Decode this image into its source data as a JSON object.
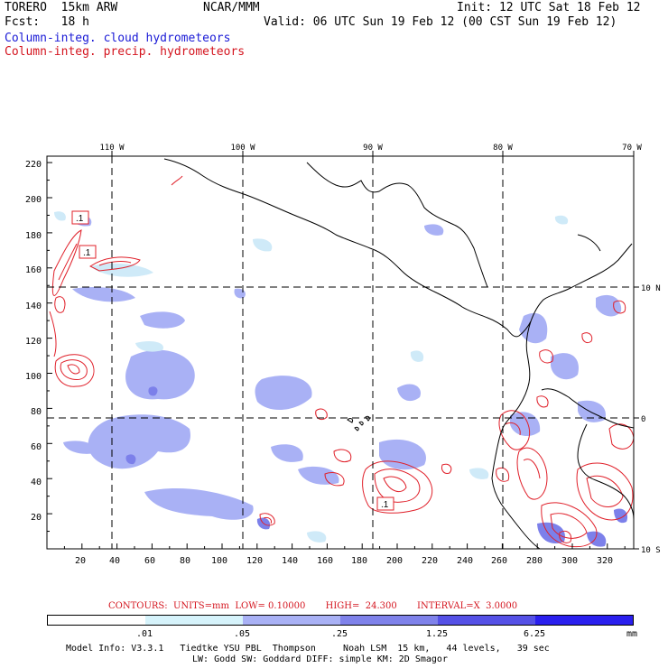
{
  "header": {
    "model": "TORERO  15km ARW",
    "org": "NCAR/MMM",
    "init": "Init: 12 UTC Sat 18 Feb 12",
    "fcst": "Fcst:   18 h",
    "valid": "Valid: 06 UTC Sun 19 Feb 12 (00 CST Sun 19 Feb 12)",
    "field1": "Column-integ. cloud hydrometeors",
    "field2": "Column-integ. precip. hydrometeors"
  },
  "map": {
    "lon_labels": [
      "110 W",
      "100 W",
      "90 W",
      "80 W",
      "70 W"
    ],
    "lat_labels": [
      "10 N",
      "0",
      "10 S"
    ],
    "y_ticks": [
      "220",
      "200",
      "180",
      "160",
      "140",
      "120",
      "100",
      "80",
      "60",
      "40",
      "20"
    ],
    "x_ticks": [
      "20",
      "40",
      "60",
      "80",
      "100",
      "120",
      "140",
      "160",
      "180",
      "200",
      "220",
      "240",
      "260",
      "280",
      "300",
      "320"
    ],
    "contour_labels": [
      ".1",
      ".1",
      ".1"
    ],
    "colors": {
      "cloud_light": "#cfeaf8",
      "cloud_mid": "#a9b1f5",
      "cloud_dark": "#7c80ea",
      "precip": "#e0202a",
      "coast": "#000000"
    }
  },
  "contours": {
    "title": "CONTOURS:  UNITS=mm  LOW= 0.10000       HIGH=  24.300       INTERVAL=X  3.0000"
  },
  "colorbar": {
    "labels": [
      ".01",
      ".05",
      ".25",
      "1.25",
      "6.25"
    ],
    "unit": "mm",
    "colors": [
      "#ffffff",
      "#d6f3fb",
      "#a9b1f5",
      "#7f82ea",
      "#5551e6",
      "#2a1fee"
    ]
  },
  "footer": {
    "line1": "Model Info: V3.3.1   Tiedtke YSU PBL  Thompson     Noah LSM  15 km,   44 levels,   39 sec",
    "line2": "LW: Godd SW: Goddard DIFF: simple KM: 2D Smagor"
  }
}
